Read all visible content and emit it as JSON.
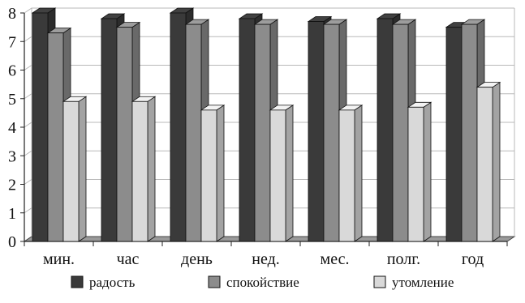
{
  "chart_data": {
    "type": "bar",
    "categories": [
      "мин.",
      "час",
      "день",
      "нед.",
      "мес.",
      "полг.",
      "год"
    ],
    "series": [
      {
        "name": "радость",
        "color": "#3a3a3a",
        "values": [
          8.0,
          7.8,
          8.0,
          7.8,
          7.7,
          7.8,
          7.5
        ]
      },
      {
        "name": "спокойствие",
        "color": "#8c8c8c",
        "values": [
          7.3,
          7.5,
          7.6,
          7.6,
          7.6,
          7.6,
          7.6
        ]
      },
      {
        "name": "утомление",
        "color": "#d9d9d9",
        "values": [
          4.9,
          4.9,
          4.6,
          4.6,
          4.6,
          4.7,
          5.4
        ]
      }
    ],
    "yticks": [
      "0",
      "1",
      "2",
      "3",
      "4",
      "5",
      "6",
      "7",
      "8"
    ],
    "ylim": [
      0,
      8
    ],
    "grid": true,
    "legend_position": "bottom"
  }
}
